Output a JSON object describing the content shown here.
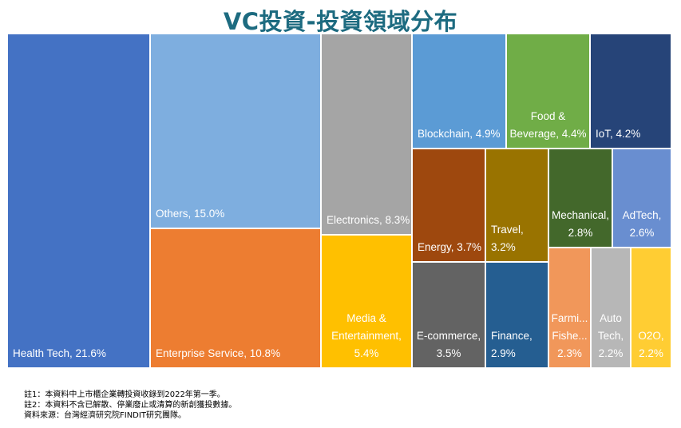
{
  "chart_data": {
    "type": "treemap",
    "title": "VC投資-投資領域分布",
    "items": [
      {
        "name": "Health Tech",
        "value": 21.6,
        "label": "Health Tech, 21.6%",
        "color": "#4472C4"
      },
      {
        "name": "Others",
        "value": 15.0,
        "label": "Others, 15.0%",
        "color": "#7EAEDF"
      },
      {
        "name": "Enterprise Service",
        "value": 10.8,
        "label": "Enterprise Service, 10.8%",
        "color": "#ED7D31"
      },
      {
        "name": "Electronics",
        "value": 8.3,
        "label": "Electronics, 8.3%",
        "color": "#A5A5A5"
      },
      {
        "name": "Media & Entertainment",
        "value": 5.4,
        "label": "Media &\nEntertainment,\n5.4%",
        "color": "#FFC000"
      },
      {
        "name": "Blockchain",
        "value": 4.9,
        "label": "Blockchain, 4.9%",
        "color": "#5B9BD5"
      },
      {
        "name": "Food & Beverage",
        "value": 4.4,
        "label": "Food &\nBeverage, 4.4%",
        "color": "#70AD47"
      },
      {
        "name": "IoT",
        "value": 4.2,
        "label": "IoT, 4.2%",
        "color": "#264478"
      },
      {
        "name": "Energy",
        "value": 3.7,
        "label": "Energy, 3.7%",
        "color": "#9E480E"
      },
      {
        "name": "Travel",
        "value": 3.2,
        "label": "Travel,\n3.2%",
        "color": "#997300"
      },
      {
        "name": "E-commerce",
        "value": 3.5,
        "label": "E-commerce,\n3.5%",
        "color": "#636363"
      },
      {
        "name": "Finance",
        "value": 2.9,
        "label": "Finance,\n2.9%",
        "color": "#255E91"
      },
      {
        "name": "Mechanical",
        "value": 2.8,
        "label": "Mechanical,\n2.8%",
        "color": "#43682B"
      },
      {
        "name": "AdTech",
        "value": 2.6,
        "label": "AdTech,\n2.6%",
        "color": "#698ED0"
      },
      {
        "name": "Farming & Fishery",
        "value": 2.3,
        "label": "Farmi...\nFishe...\n2.3%",
        "color": "#F1975A"
      },
      {
        "name": "Auto Tech",
        "value": 2.2,
        "label": "Auto\nTech,\n2.2%",
        "color": "#B7B7B7"
      },
      {
        "name": "O2O",
        "value": 2.2,
        "label": "O2O,\n2.2%",
        "color": "#FFCD33"
      }
    ]
  },
  "notes": [
    "註1：本資料中上市櫃企業轉投資收錄到2022年第一季。",
    "註2：本資料不含已解散、停業廢止或清算的新創獲投數據。",
    "資料來源：台灣經濟研究院FINDIT研究團隊。"
  ]
}
